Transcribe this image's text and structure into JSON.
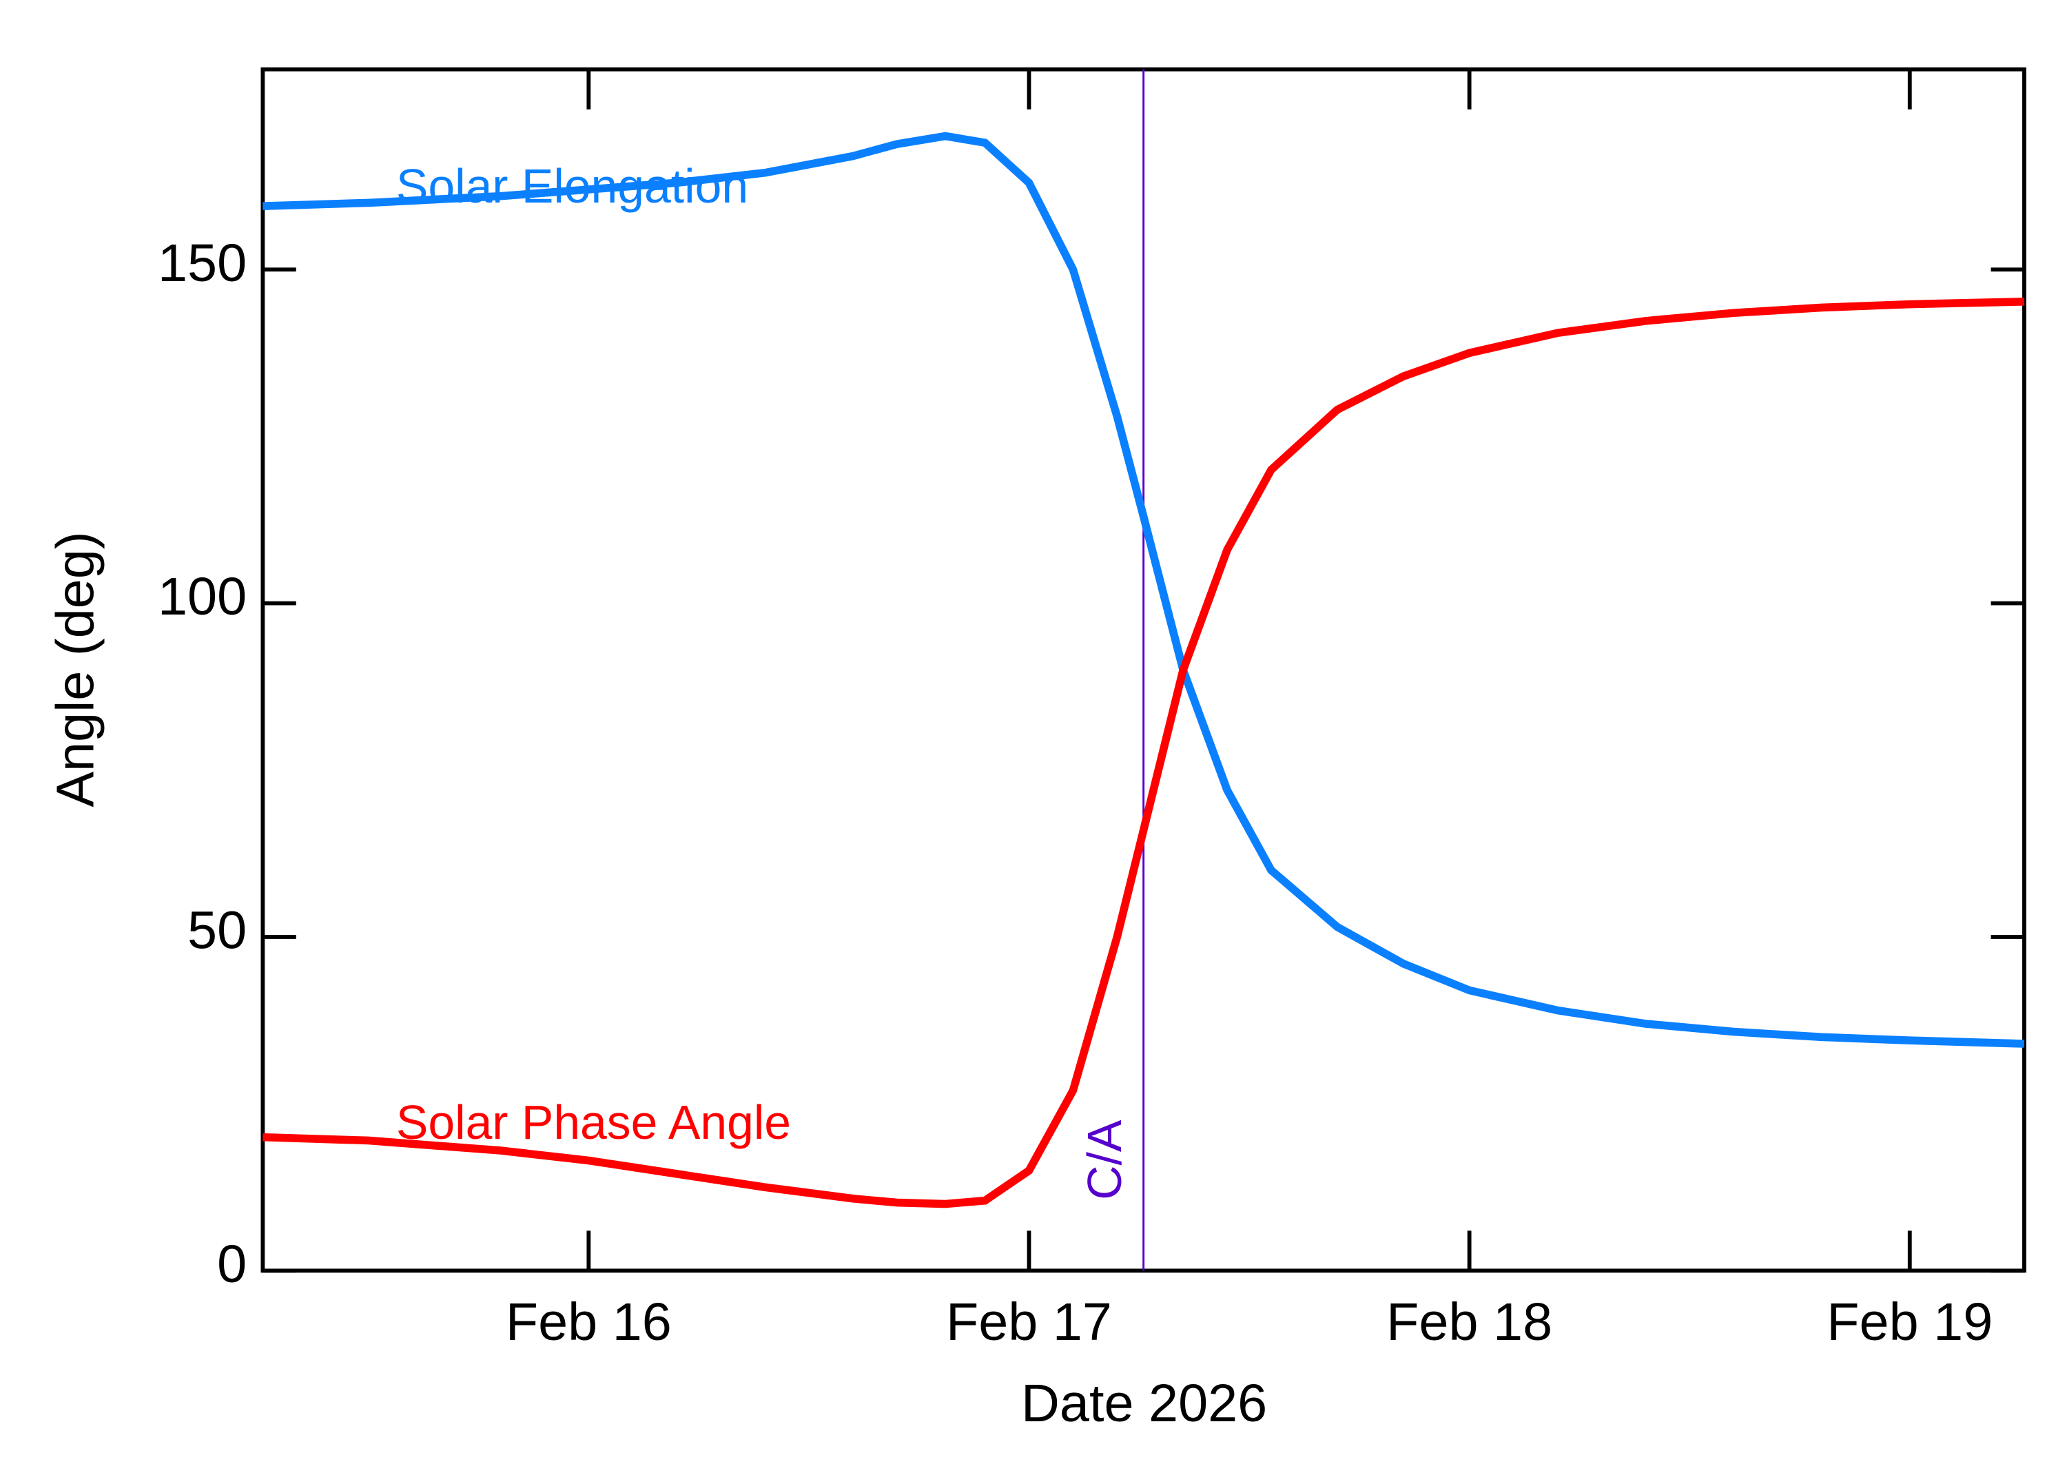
{
  "chart_data": {
    "type": "line",
    "x_label": "Date 2026",
    "y_label": "Angle (deg)",
    "x": [
      15.26,
      15.5,
      15.8,
      16.0,
      16.2,
      16.4,
      16.6,
      16.7,
      16.81,
      16.9,
      17.0,
      17.1,
      17.2,
      17.26,
      17.35,
      17.45,
      17.55,
      17.7,
      17.85,
      18.0,
      18.2,
      18.4,
      18.6,
      18.8,
      19.0,
      19.26
    ],
    "series": [
      {
        "name": "Solar Elongation",
        "color": "#0a80ff",
        "values": [
          159.5,
          160,
          161,
          162,
          163,
          164.5,
          167,
          168.8,
          170,
          169,
          163,
          150,
          128,
          113,
          90,
          72,
          60,
          51.5,
          46,
          42,
          39,
          37,
          35.8,
          35,
          34.5,
          34
        ]
      },
      {
        "name": "Solar Phase Angle",
        "color": "#ff0000",
        "values": [
          20,
          19.5,
          18,
          16.5,
          14.5,
          12.5,
          10.8,
          10.2,
          10,
          10.5,
          15,
          27,
          50,
          66,
          90,
          108,
          120,
          129,
          134,
          137.5,
          140.5,
          142.3,
          143.5,
          144.3,
          144.8,
          145.2
        ]
      }
    ],
    "xlim": [
      15.26,
      19.26
    ],
    "xticks": [
      {
        "value": 16,
        "label": "Feb 16"
      },
      {
        "value": 17,
        "label": "Feb 17"
      },
      {
        "value": 18,
        "label": "Feb 18"
      },
      {
        "value": 19,
        "label": "Feb 19"
      }
    ],
    "ylim": [
      0,
      180
    ],
    "yticks": [
      0,
      50,
      100,
      150
    ],
    "closest_approach": {
      "x": 17.26,
      "label": "C/A",
      "color": "#5500cc"
    }
  }
}
